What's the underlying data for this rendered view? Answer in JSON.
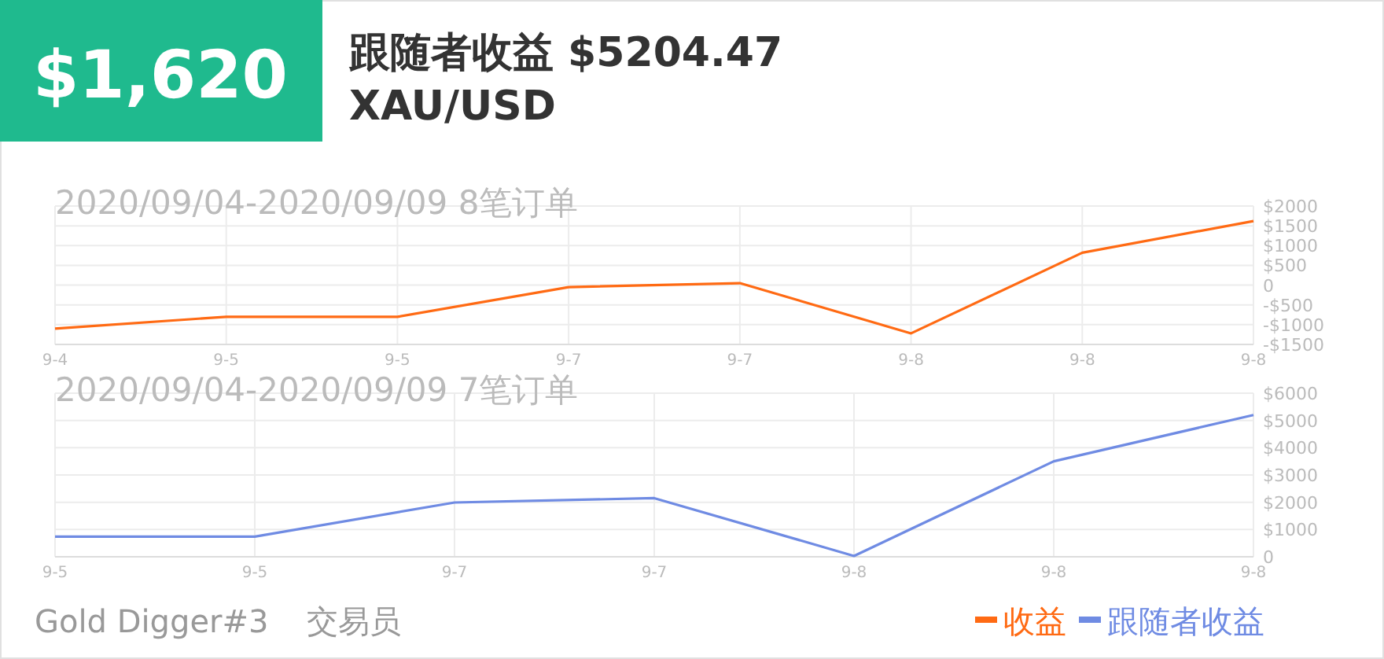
{
  "chart_data": [
    {
      "type": "other",
      "title": "跟随者收益 $5204.47",
      "subtitle": "XAU/USD",
      "annotations": [
        "$1,620",
        "Gold Digger#3",
        "交易员"
      ]
    },
    {
      "type": "line",
      "title": "2020/09/04-2020/09/09 8笔订单",
      "categories": [
        "9-4",
        "9-5",
        "9-5",
        "9-7",
        "9-7",
        "9-8",
        "9-8",
        "9-8"
      ],
      "series": [
        {
          "name": "收益",
          "color": "#ff6a13",
          "values": [
            -1100,
            -800,
            -800,
            -50,
            50,
            -1220,
            820,
            1620
          ]
        }
      ],
      "ylim": [
        -1500,
        2000
      ],
      "yticks": [
        {
          "value": -1500,
          "label": "-$1500"
        },
        {
          "value": -1000,
          "label": "-$1000"
        },
        {
          "value": -500,
          "label": "-$500"
        },
        {
          "value": 0,
          "label": "0"
        },
        {
          "value": 500,
          "label": "$500"
        },
        {
          "value": 1000,
          "label": "$1000"
        },
        {
          "value": 1500,
          "label": "$1500"
        },
        {
          "value": 2000,
          "label": "$2000"
        }
      ],
      "grid": true,
      "legend": "bottom right",
      "marker": "none"
    },
    {
      "type": "line",
      "title": "2020/09/04-2020/09/09 7笔订单",
      "categories": [
        "9-5",
        "9-5",
        "9-7",
        "9-7",
        "9-8",
        "9-8",
        "9-8"
      ],
      "series": [
        {
          "name": "跟随者收益",
          "color": "#6f8be3",
          "values": [
            740,
            740,
            1990,
            2150,
            30,
            3500,
            5200
          ]
        }
      ],
      "ylim": [
        0,
        6000
      ],
      "yticks": [
        {
          "value": 0,
          "label": "0"
        },
        {
          "value": 1000,
          "label": "$1000"
        },
        {
          "value": 2000,
          "label": "$2000"
        },
        {
          "value": 3000,
          "label": "$3000"
        },
        {
          "value": 4000,
          "label": "$4000"
        },
        {
          "value": 5000,
          "label": "$5000"
        },
        {
          "value": 6000,
          "label": "$6000"
        }
      ],
      "grid": true,
      "legend": "bottom right",
      "marker": "none"
    }
  ]
}
